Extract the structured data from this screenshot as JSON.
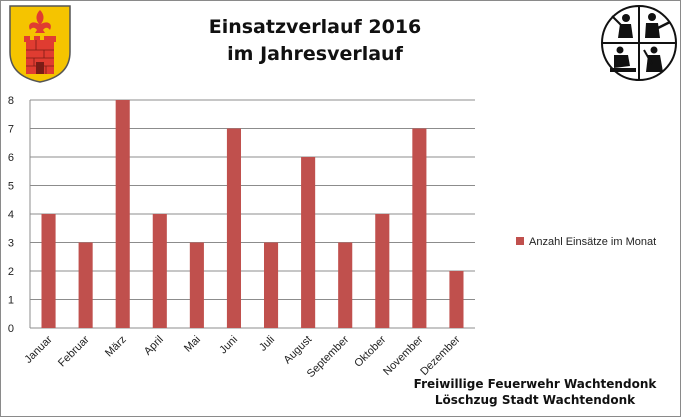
{
  "title_line1": "Einsatzverlauf 2016",
  "title_line2": "im Jahresverlauf",
  "footer_line1": "Freiwillige Feuerwehr Wachtendonk",
  "footer_line2": "Löschzug Stadt Wachtendonk",
  "logos": {
    "left": "town-coat-of-arms",
    "right": "fire-brigade-emblem"
  },
  "colors": {
    "bar": "#c0504d",
    "grid": "#8c8c8c",
    "crest_gold": "#f5c400",
    "crest_red": "#e03c31"
  },
  "chart_data": {
    "type": "bar",
    "categories": [
      "Januar",
      "Februar",
      "März",
      "April",
      "Mai",
      "Juni",
      "Juli",
      "August",
      "September",
      "Oktober",
      "November",
      "Dezember"
    ],
    "series": [
      {
        "name": "Anzahl Einsätze im Monat",
        "values": [
          4,
          3,
          8,
          4,
          3,
          7,
          3,
          6,
          3,
          4,
          7,
          2
        ]
      }
    ],
    "ylim": [
      0,
      8
    ],
    "yticks": [
      0,
      1,
      2,
      3,
      4,
      5,
      6,
      7,
      8
    ],
    "grid": true,
    "legend_position": "right"
  }
}
